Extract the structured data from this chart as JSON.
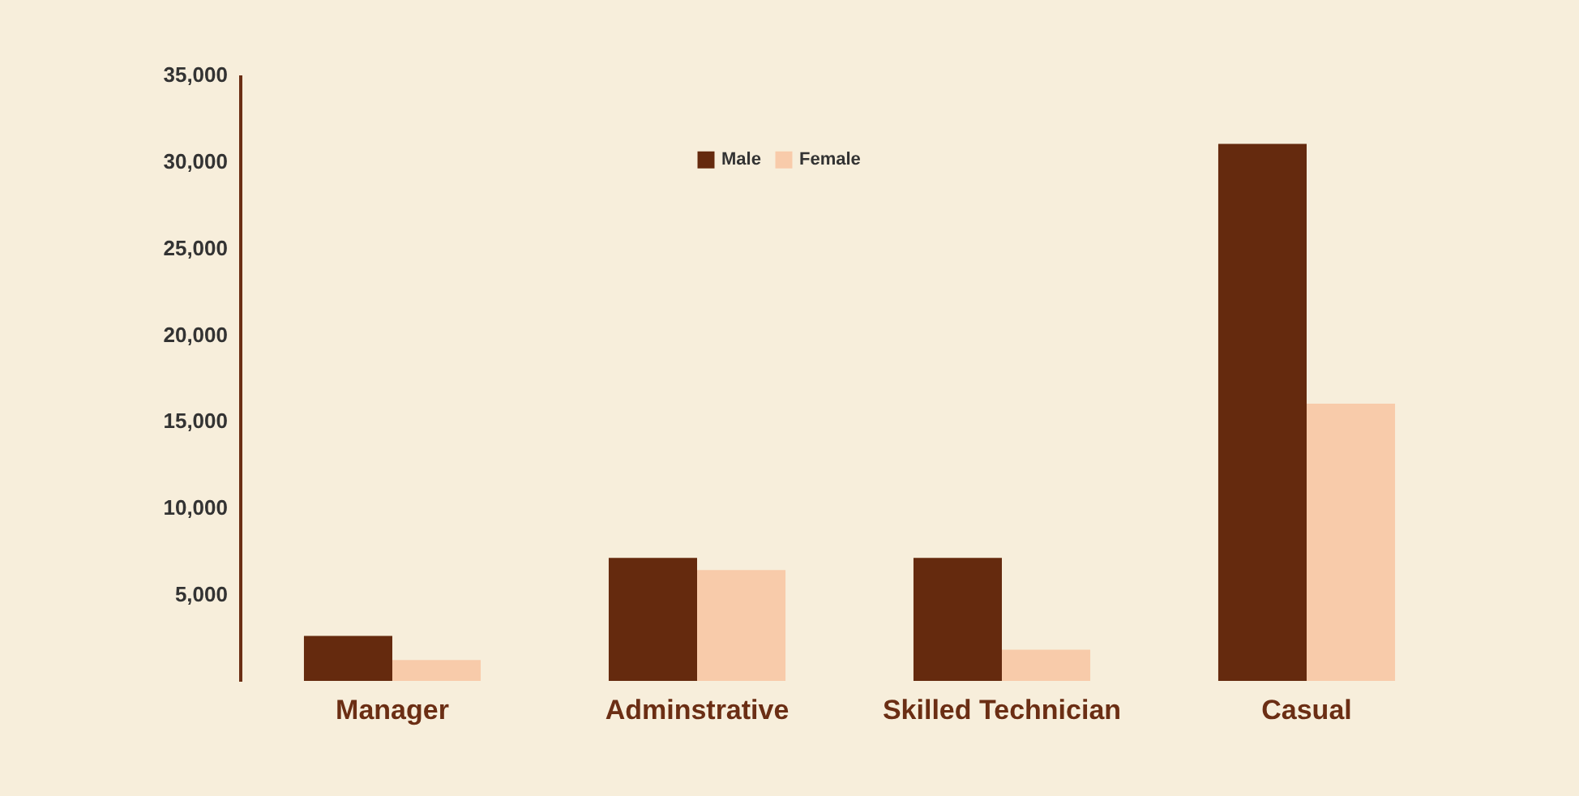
{
  "chart_data": {
    "type": "bar",
    "categories": [
      "Manager",
      "Adminstrative",
      "Skilled Technician",
      "Casual"
    ],
    "series": [
      {
        "name": "Male",
        "color": "#652a0e",
        "values": [
          2600,
          7100,
          7100,
          31000
        ]
      },
      {
        "name": "Female",
        "color": "#f8cbaa",
        "values": [
          1200,
          6400,
          1800,
          16000
        ]
      }
    ],
    "ylim": [
      0,
      35000
    ],
    "yticks": [
      {
        "value": 5000,
        "label": "5,000"
      },
      {
        "value": 10000,
        "label": "10,000"
      },
      {
        "value": 15000,
        "label": "15,000"
      },
      {
        "value": 20000,
        "label": "20,000"
      },
      {
        "value": 25000,
        "label": "25,000"
      },
      {
        "value": 30000,
        "label": "30,000"
      },
      {
        "value": 35000,
        "label": "35,000"
      }
    ],
    "grid": false,
    "legend": "top"
  }
}
